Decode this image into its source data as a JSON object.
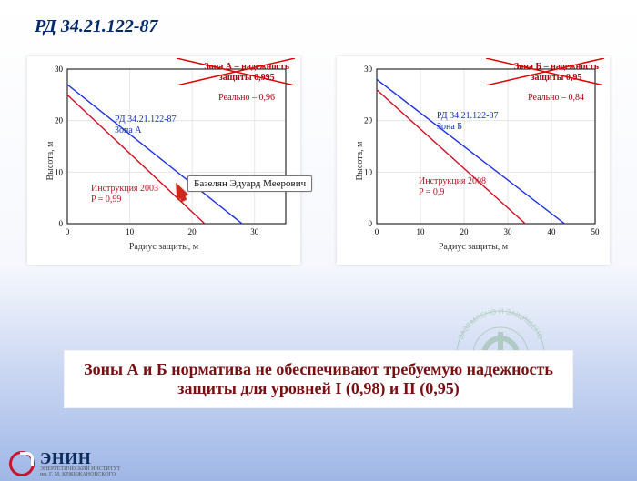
{
  "title": "РД 34.21.122-87",
  "charts": [
    {
      "id": "zoneA",
      "header_line1": "Зона А – надежность",
      "header_line2": "защиты 0,995",
      "header_color": "#b00010",
      "real_label": "Реально – 0,96",
      "real_color": "#b00010",
      "blue_label_line1": "РД 34.21.122-87",
      "blue_label_line2": "Зона А",
      "blue_label_color": "#1030c0",
      "red_label_line1": "Инструкция 2003",
      "red_label_line2": "P = 0,99",
      "red_label_color": "#c01020",
      "ylabel": "Высота, м",
      "xlabel": "Радиус защиты, м",
      "xlim": [
        0,
        35
      ],
      "ylim": [
        0,
        30
      ],
      "xticks": [
        0,
        10,
        20,
        30
      ],
      "yticks": [
        0,
        10,
        20,
        30
      ],
      "grid_color": "#e6e6e6",
      "axis_color": "#000000",
      "background": "#ffffff",
      "blue_line": {
        "color": "#1a2fe0",
        "width": 1.4,
        "points": [
          [
            0,
            27
          ],
          [
            28,
            0
          ]
        ]
      },
      "red_line": {
        "color": "#d01020",
        "width": 1.4,
        "points": [
          [
            0,
            25
          ],
          [
            22,
            0
          ]
        ]
      },
      "tick_fontsize": 9
    },
    {
      "id": "zoneB",
      "header_line1": "Зона Б – надежность",
      "header_line2": "защиты 0,95",
      "header_color": "#b00010",
      "real_label": "Реально – 0,84",
      "real_color": "#b00010",
      "blue_label_line1": "РД 34.21.122-87",
      "blue_label_line2": "Зона Б",
      "blue_label_color": "#1030c0",
      "red_label_line1": "Инструкция 2008",
      "red_label_line2": "P = 0,9",
      "red_label_color": "#c01020",
      "ylabel": "Высота, м",
      "xlabel": "Радиус защиты, м",
      "xlim": [
        0,
        50
      ],
      "ylim": [
        0,
        30
      ],
      "xticks": [
        0,
        10,
        20,
        30,
        40,
        50
      ],
      "yticks": [
        0,
        10,
        20,
        30
      ],
      "grid_color": "#e6e6e6",
      "axis_color": "#000000",
      "background": "#ffffff",
      "blue_line": {
        "color": "#1a2fe0",
        "width": 1.4,
        "points": [
          [
            0,
            28
          ],
          [
            43,
            0
          ]
        ]
      },
      "red_line": {
        "color": "#d01020",
        "width": 1.4,
        "points": [
          [
            0,
            26
          ],
          [
            34,
            0
          ]
        ]
      },
      "tick_fontsize": 9
    }
  ],
  "callout_text": "Базелян Эдуард Меерович",
  "conclusion": "Зоны А и Б норматива не обеспечивают требуемую надежность защиты  для уровней I (0,98) и II (0,95)",
  "logo": {
    "text": "ЭНИН",
    "sub": "ЭНЕРГЕТИЧЕСКИЙ ИНСТИТУТ\nим. Г. М. КРЖИЖАНОВСКОГО"
  },
  "watermark": {
    "top": "ЗАЗЕМЛЕНО И ЗАЩИЩЕНО",
    "bottom": "ZANDZ . RU",
    "color": "#6aa26a"
  }
}
